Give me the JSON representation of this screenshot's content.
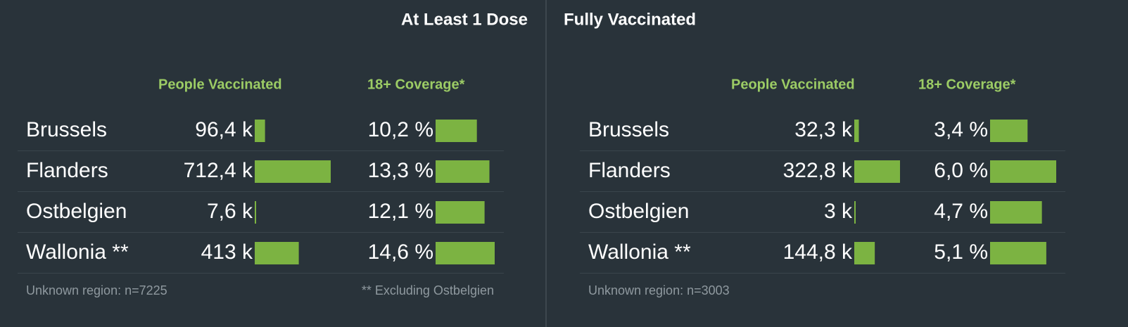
{
  "panels": [
    {
      "title": "At Least 1 Dose",
      "columns": [
        "People Vaccinated",
        "18+ Coverage*"
      ],
      "rows": [
        {
          "region": "Brussels",
          "people": {
            "value": 96400,
            "label": "96,4 k"
          },
          "coverage": {
            "value": 10.2,
            "label": "10,2 %"
          }
        },
        {
          "region": "Flanders",
          "people": {
            "value": 712400,
            "label": "712,4 k"
          },
          "coverage": {
            "value": 13.3,
            "label": "13,3 %"
          }
        },
        {
          "region": "Ostbelgien",
          "people": {
            "value": 7600,
            "label": "7,6 k"
          },
          "coverage": {
            "value": 12.1,
            "label": "12,1 %"
          }
        },
        {
          "region": "Wallonia **",
          "people": {
            "value": 413000,
            "label": "413 k"
          },
          "coverage": {
            "value": 14.6,
            "label": "14,6 %"
          }
        }
      ],
      "notes": [
        "Unknown region: n=7225",
        "** Excluding Ostbelgien"
      ]
    },
    {
      "title": "Fully Vaccinated",
      "columns": [
        "People Vaccinated",
        "18+ Coverage*"
      ],
      "rows": [
        {
          "region": "Brussels",
          "people": {
            "value": 32300,
            "label": "32,3 k"
          },
          "coverage": {
            "value": 3.4,
            "label": "3,4 %"
          }
        },
        {
          "region": "Flanders",
          "people": {
            "value": 322800,
            "label": "322,8 k"
          },
          "coverage": {
            "value": 6.0,
            "label": "6,0 %"
          }
        },
        {
          "region": "Ostbelgien",
          "people": {
            "value": 3000,
            "label": "3 k"
          },
          "coverage": {
            "value": 4.7,
            "label": "4,7 %"
          }
        },
        {
          "region": "Wallonia **",
          "people": {
            "value": 144800,
            "label": "144,8 k"
          },
          "coverage": {
            "value": 5.1,
            "label": "5,1 %"
          }
        }
      ],
      "notes": [
        "Unknown region: n=3003"
      ]
    }
  ]
}
